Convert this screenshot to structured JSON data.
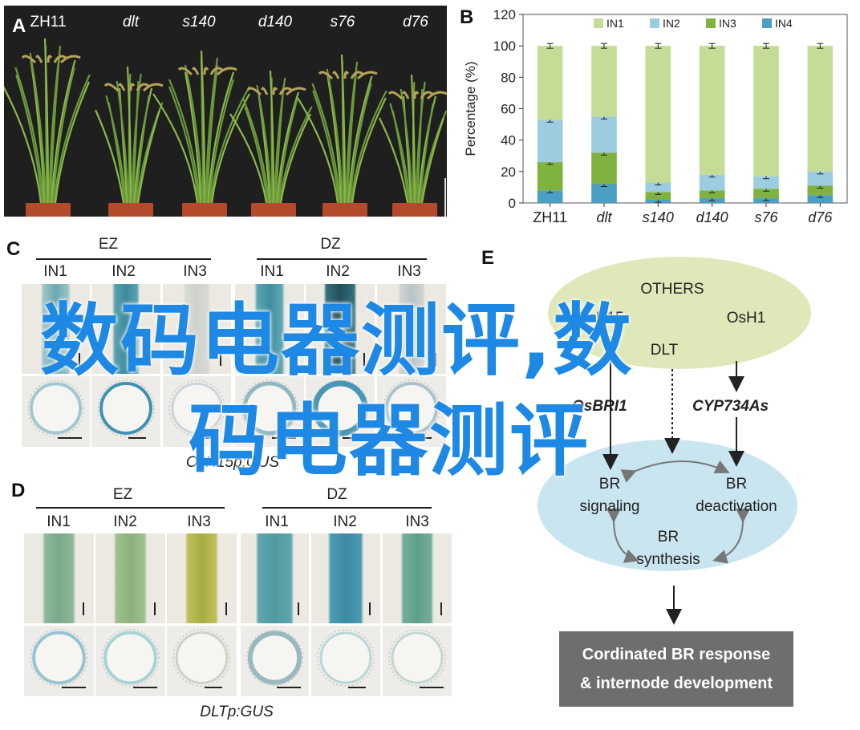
{
  "panel_a": {
    "letter": "A",
    "labels": [
      "ZH11",
      "dlt",
      "s140",
      "d140",
      "s76",
      "d76"
    ]
  },
  "panel_b": {
    "letter": "B"
  },
  "chart_data": {
    "type": "bar",
    "stacked": true,
    "categories": [
      "ZH11",
      "dlt",
      "s140",
      "d140",
      "s76",
      "d76"
    ],
    "ylabel": "Percentage (%)",
    "xlabel": "",
    "ylim": [
      0,
      120
    ],
    "yticks": [
      0,
      20,
      40,
      60,
      80,
      100,
      120
    ],
    "legend_position": "top",
    "series": [
      {
        "name": "IN4",
        "color": "#4a9fc3",
        "values": [
          8,
          12,
          2,
          3,
          3,
          5
        ]
      },
      {
        "name": "IN3",
        "color": "#7fb23e",
        "values": [
          18,
          20,
          5,
          5,
          6,
          6
        ]
      },
      {
        "name": "IN2",
        "color": "#9ccce0",
        "values": [
          27,
          23,
          6,
          10,
          8,
          9
        ]
      },
      {
        "name": "IN1",
        "color": "#c5dc96",
        "values": [
          47,
          45,
          87,
          82,
          83,
          80
        ]
      }
    ]
  },
  "panel_c": {
    "letter": "C",
    "groups": [
      "EZ",
      "DZ"
    ],
    "internodes": [
      "IN1",
      "IN2",
      "IN3",
      "IN1",
      "IN2",
      "IN3"
    ],
    "caption": "OsH15p:GUS"
  },
  "panel_d": {
    "letter": "D",
    "groups": [
      "EZ",
      "DZ"
    ],
    "internodes": [
      "IN1",
      "IN2",
      "IN3",
      "IN1",
      "IN2",
      "IN3"
    ],
    "caption": "DLTp:GUS"
  },
  "panel_e": {
    "letter": "E",
    "top_nodes": [
      "OTHERS",
      "OsH15",
      "DLT",
      "OsH1"
    ],
    "genes": [
      "OsBRI1",
      "CYP734As"
    ],
    "br_signaling": [
      "BR",
      "signaling"
    ],
    "br_deactivation": [
      "BR",
      "deactivation"
    ],
    "br_synthesis": [
      "BR",
      "synthesis"
    ],
    "response": [
      "Cordinated BR response",
      "& internode development"
    ]
  },
  "watermark": {
    "line1": "数码电器测评,数",
    "line2": "码电器测评"
  },
  "colors": {
    "ellipse_top": "#dfe8b9",
    "ellipse_bottom": "#c9e5ef",
    "response_box": "#6d6e70"
  }
}
